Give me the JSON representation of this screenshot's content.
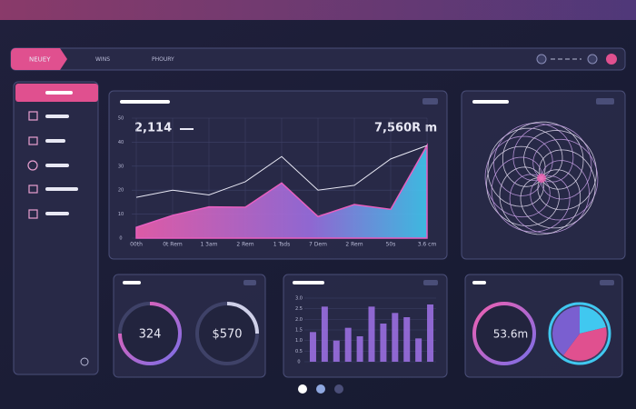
{
  "header": {
    "brand": "NEUEY",
    "tabs": [
      "WINS",
      "PHOURY"
    ]
  },
  "main_chart": {
    "type": "area",
    "value_left": "2,114",
    "value_right": "7,560R m",
    "categories": [
      "00th",
      "0t Rem",
      "1 3am",
      "2 Rem",
      "1 Tsds",
      "7 Dem",
      "2 Rem",
      "50s",
      "3.6 cm"
    ],
    "series": [
      {
        "color": "#e85fc0",
        "values": [
          4.5,
          9.5,
          13,
          12.9,
          23,
          9,
          14,
          12,
          38.6
        ]
      },
      {
        "color": "#e8e8f4",
        "values": [
          17,
          20,
          18,
          23.5,
          34,
          20,
          22,
          33,
          38.6
        ]
      }
    ],
    "ylim": [
      0,
      50
    ],
    "yticks": [
      0,
      10,
      20,
      30,
      40,
      50
    ]
  },
  "gauges": {
    "left": "324",
    "right": "$570",
    "third": "53.6m"
  },
  "bar_chart": {
    "type": "bar",
    "color": "#9a6ee0",
    "values": [
      1.4,
      2.6,
      1.0,
      1.6,
      1.2,
      2.6,
      1.8,
      2.3,
      2.1,
      1.1,
      2.7
    ],
    "ylim": [
      0,
      3.0
    ],
    "yticks": [
      {
        "value": 0,
        "label": "0"
      },
      {
        "value": 0.5,
        "label": "0.5"
      },
      {
        "value": 1.0,
        "label": "1.0"
      },
      {
        "value": 1.5,
        "label": "1.5"
      },
      {
        "value": 2.0,
        "label": "2.0"
      },
      {
        "value": 2.5,
        "label": "2.5"
      },
      {
        "value": 3.0,
        "label": "3.0"
      }
    ]
  }
}
